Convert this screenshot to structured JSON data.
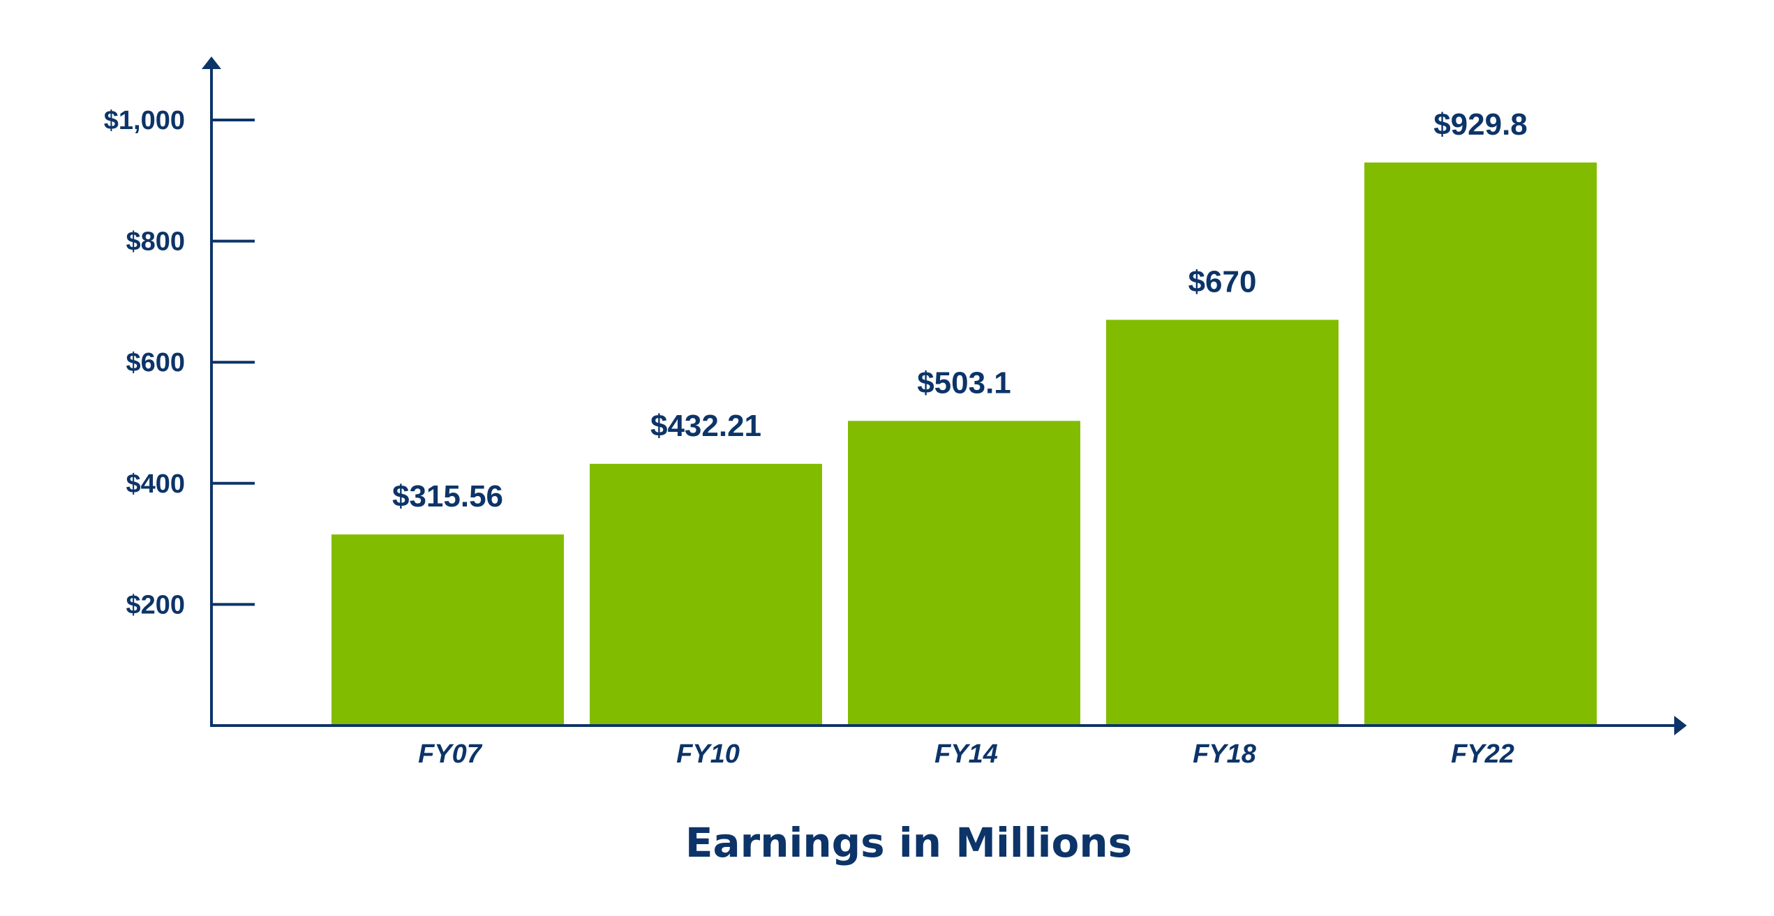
{
  "chart_data": {
    "type": "bar",
    "categories": [
      "FY07",
      "FY10",
      "FY14",
      "FY18",
      "FY22"
    ],
    "values": [
      315.56,
      432.21,
      503.1,
      670,
      929.8
    ],
    "value_labels": [
      "$315.56",
      "$432.21",
      "$503.1",
      "$670",
      "$929.8"
    ],
    "xlabel": "Earnings in Millions",
    "ylabel": "",
    "ylim": [
      0,
      1000
    ],
    "yticks": [
      200,
      400,
      600,
      800,
      1000
    ],
    "ytick_labels": [
      "$200",
      "$400",
      "$600",
      "$800",
      "$1,000"
    ],
    "grid": false,
    "legend": "none",
    "colors": {
      "bar": "#82bc00",
      "axis": "#0d3468",
      "text": "#0d3468"
    }
  }
}
